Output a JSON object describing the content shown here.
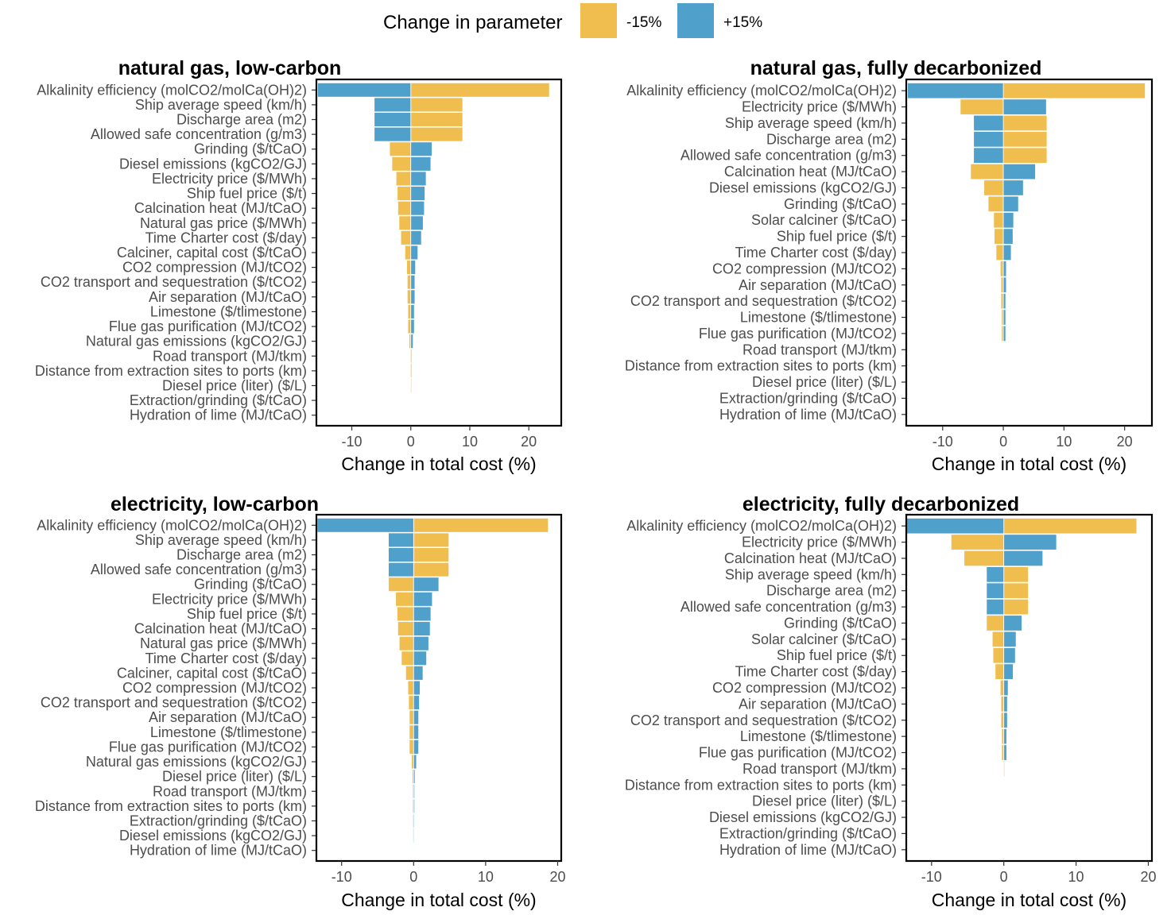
{
  "legend": {
    "title": "Change in parameter",
    "items": [
      {
        "label": "-15%",
        "color": "#EFBE4F"
      },
      {
        "label": "+15%",
        "color": "#4FA0CB"
      }
    ]
  },
  "colors": {
    "minus": "#EFBE4F",
    "plus": "#4FA0CB"
  },
  "chart_data": [
    {
      "type": "bar",
      "orientation": "horizontal",
      "title": "natural gas, low-carbon",
      "xlabel": "Change in total cost (%)",
      "xlim": [
        -16,
        25.5
      ],
      "xticks": [
        -10,
        0,
        10,
        20
      ],
      "categories": [
        "Alkalinity efficiency (molCO2/molCa(OH)2)",
        "Ship average speed (km/h)",
        "Discharge area (m2)",
        "Allowed safe concentration (g/m3)",
        "Grinding ($/tCaO)",
        "Diesel emissions (kgCO2/GJ)",
        "Electricity price ($/MWh)",
        "Ship fuel price ($/t)",
        "Calcination heat (MJ/tCaO)",
        "Natural gas price ($/MWh)",
        "Time Charter cost ($/day)",
        "Calciner, capital cost ($/tCaO)",
        "CO2 compression (MJ/tCO2)",
        "CO2 transport and sequestration ($/tCO2)",
        "Air separation (MJ/tCaO)",
        "Limestone ($/tlimestone)",
        "Flue gas purification (MJ/tCO2)",
        "Natural gas emissions (kgCO2/GJ)",
        "Road transport (MJ/tkm)",
        "Distance from extraction sites to ports (km)",
        "Diesel price (liter) ($/L)",
        "Extraction/grinding ($/tCaO)",
        "Hydration of lime (MJ/tCaO)"
      ],
      "series": [
        {
          "name": "-15%",
          "values": [
            23.5,
            8.8,
            8.8,
            8.8,
            -3.6,
            -3.2,
            -2.5,
            -2.3,
            -2.2,
            -2.0,
            -1.7,
            -1.0,
            -0.7,
            -0.6,
            -0.6,
            -0.5,
            -0.5,
            -0.3,
            -0.15,
            -0.15,
            -0.12,
            -0.1,
            -0.05
          ]
        },
        {
          "name": "+15%",
          "values": [
            -15.8,
            -6.2,
            -6.2,
            -6.2,
            3.6,
            3.4,
            2.6,
            2.4,
            2.3,
            2.1,
            1.8,
            1.2,
            0.8,
            0.7,
            0.7,
            0.6,
            0.6,
            0.4,
            0.15,
            0.15,
            0.12,
            0.1,
            0.05
          ]
        }
      ]
    },
    {
      "type": "bar",
      "orientation": "horizontal",
      "title": "natural gas, fully decarbonized",
      "xlabel": "Change in total cost (%)",
      "xlim": [
        -16,
        24.5
      ],
      "xticks": [
        -10,
        0,
        10,
        20
      ],
      "categories": [
        "Alkalinity efficiency (molCO2/molCa(OH)2)",
        "Electricity price ($/MWh)",
        "Ship average speed (km/h)",
        "Discharge area (m2)",
        "Allowed safe concentration (g/m3)",
        "Calcination heat (MJ/tCaO)",
        "Diesel emissions (kgCO2/GJ)",
        "Grinding ($/tCaO)",
        "Solar calciner ($/tCaO)",
        "Ship fuel price ($/t)",
        "Time Charter cost ($/day)",
        "CO2 compression (MJ/tCO2)",
        "Air separation (MJ/tCaO)",
        "CO2 transport and sequestration ($/tCO2)",
        "Limestone ($/tlimestone)",
        "Flue gas purification (MJ/tCO2)",
        "Road transport (MJ/tkm)",
        "Distance from extraction sites to ports (km)",
        "Diesel price (liter) ($/L)",
        "Extraction/grinding ($/tCaO)",
        "Hydration of lime (MJ/tCaO)"
      ],
      "series": [
        {
          "name": "-15%",
          "values": [
            23.4,
            -7.1,
            7.2,
            7.2,
            7.2,
            -5.4,
            -3.2,
            -2.5,
            -1.6,
            -1.5,
            -1.2,
            -0.5,
            -0.4,
            -0.4,
            -0.3,
            -0.3,
            -0.1,
            -0.08,
            -0.06,
            -0.05,
            -0.04
          ]
        },
        {
          "name": "+15%",
          "values": [
            -15.8,
            7.1,
            -4.9,
            -4.9,
            -4.9,
            5.3,
            3.3,
            2.5,
            1.7,
            1.6,
            1.3,
            0.5,
            0.5,
            0.4,
            0.4,
            0.4,
            0.1,
            0.08,
            0.06,
            0.05,
            0.04
          ]
        }
      ]
    },
    {
      "type": "bar",
      "orientation": "horizontal",
      "title": "electricity, low-carbon",
      "xlabel": "Change in total cost (%)",
      "xlim": [
        -13.5,
        20.5
      ],
      "xticks": [
        -10,
        0,
        10,
        20
      ],
      "categories": [
        "Alkalinity efficiency (molCO2/molCa(OH)2)",
        "Ship average speed (km/h)",
        "Discharge area (m2)",
        "Allowed safe concentration (g/m3)",
        "Grinding ($/tCaO)",
        "Electricity price ($/MWh)",
        "Ship fuel price ($/t)",
        "Calcination heat (MJ/tCaO)",
        "Natural gas price ($/MWh)",
        "Time Charter cost ($/day)",
        "Calciner, capital cost ($/tCaO)",
        "CO2 compression (MJ/tCO2)",
        "CO2 transport and sequestration ($/tCO2)",
        "Air separation (MJ/tCaO)",
        "Limestone ($/tlimestone)",
        "Flue gas purification (MJ/tCO2)",
        "Natural gas emissions (kgCO2/GJ)",
        "Diesel price (liter) ($/L)",
        "Road transport (MJ/tkm)",
        "Distance from extraction sites to ports (km)",
        "Extraction/grinding ($/tCaO)",
        "Diesel emissions (kgCO2/GJ)",
        "Hydration of lime (MJ/tCaO)"
      ],
      "series": [
        {
          "name": "-15%",
          "values": [
            18.7,
            4.9,
            4.9,
            4.9,
            -3.5,
            -2.5,
            -2.3,
            -2.2,
            -2.0,
            -1.7,
            -1.1,
            -0.8,
            -0.7,
            -0.6,
            -0.6,
            -0.6,
            -0.3,
            -0.2,
            -0.15,
            -0.15,
            -0.12,
            -0.1,
            -0.05
          ]
        },
        {
          "name": "+15%",
          "values": [
            -13.4,
            -3.5,
            -3.5,
            -3.5,
            3.5,
            2.6,
            2.4,
            2.3,
            2.1,
            1.8,
            1.3,
            0.9,
            0.8,
            0.7,
            0.7,
            0.7,
            0.4,
            0.2,
            0.15,
            0.15,
            0.12,
            0.1,
            0.05
          ]
        }
      ]
    },
    {
      "type": "bar",
      "orientation": "horizontal",
      "title": "electricity, fully decarbonized",
      "xlabel": "Change in total cost (%)",
      "xlim": [
        -13.5,
        20.5
      ],
      "xticks": [
        -10,
        0,
        10,
        20
      ],
      "categories": [
        "Alkalinity efficiency (molCO2/molCa(OH)2)",
        "Electricity price ($/MWh)",
        "Calcination heat (MJ/tCaO)",
        "Ship average speed (km/h)",
        "Discharge area (m2)",
        "Allowed safe concentration (g/m3)",
        "Grinding ($/tCaO)",
        "Solar calciner ($/tCaO)",
        "Ship fuel price ($/t)",
        "Time Charter cost ($/day)",
        "CO2 compression (MJ/tCO2)",
        "Air separation (MJ/tCaO)",
        "CO2 transport and sequestration ($/tCO2)",
        "Limestone ($/tlimestone)",
        "Flue gas purification (MJ/tCO2)",
        "Road transport (MJ/tkm)",
        "Distance from extraction sites to ports (km)",
        "Diesel price (liter) ($/L)",
        "Diesel emissions (kgCO2/GJ)",
        "Extraction/grinding ($/tCaO)",
        "Hydration of lime (MJ/tCaO)"
      ],
      "series": [
        {
          "name": "-15%",
          "values": [
            18.4,
            -7.3,
            -5.5,
            3.4,
            3.4,
            3.4,
            -2.4,
            -1.6,
            -1.5,
            -1.2,
            -0.5,
            -0.4,
            -0.4,
            -0.3,
            -0.3,
            -0.1,
            -0.08,
            -0.06,
            -0.05,
            -0.04,
            -0.03
          ]
        },
        {
          "name": "+15%",
          "values": [
            -13.5,
            7.3,
            5.4,
            -2.4,
            -2.4,
            -2.4,
            2.5,
            1.7,
            1.6,
            1.3,
            0.6,
            0.5,
            0.5,
            0.4,
            0.4,
            0.1,
            0.08,
            0.06,
            0.05,
            0.04,
            0.03
          ]
        }
      ]
    }
  ]
}
